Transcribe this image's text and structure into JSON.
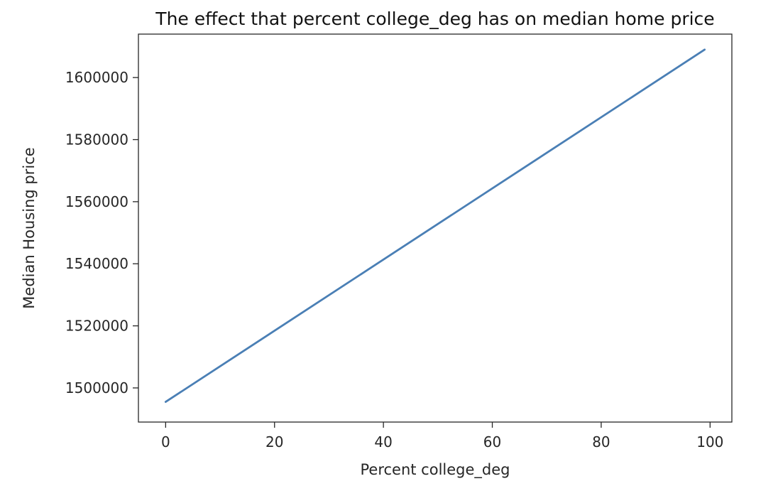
{
  "chart_data": {
    "type": "line",
    "title": "The effect that percent college_deg has on median home price",
    "xlabel": "Percent college_deg",
    "ylabel": "Median Housing price",
    "xlim": [
      -5,
      104
    ],
    "ylim": [
      1489000,
      1614000
    ],
    "xticks": [
      0,
      20,
      40,
      60,
      80,
      100
    ],
    "yticks": [
      1500000,
      1520000,
      1540000,
      1560000,
      1580000,
      1600000
    ],
    "grid": false,
    "series": [
      {
        "x": [
          0,
          99
        ],
        "y": [
          1495500,
          1609000
        ],
        "color": "#4a7fb5"
      }
    ]
  }
}
